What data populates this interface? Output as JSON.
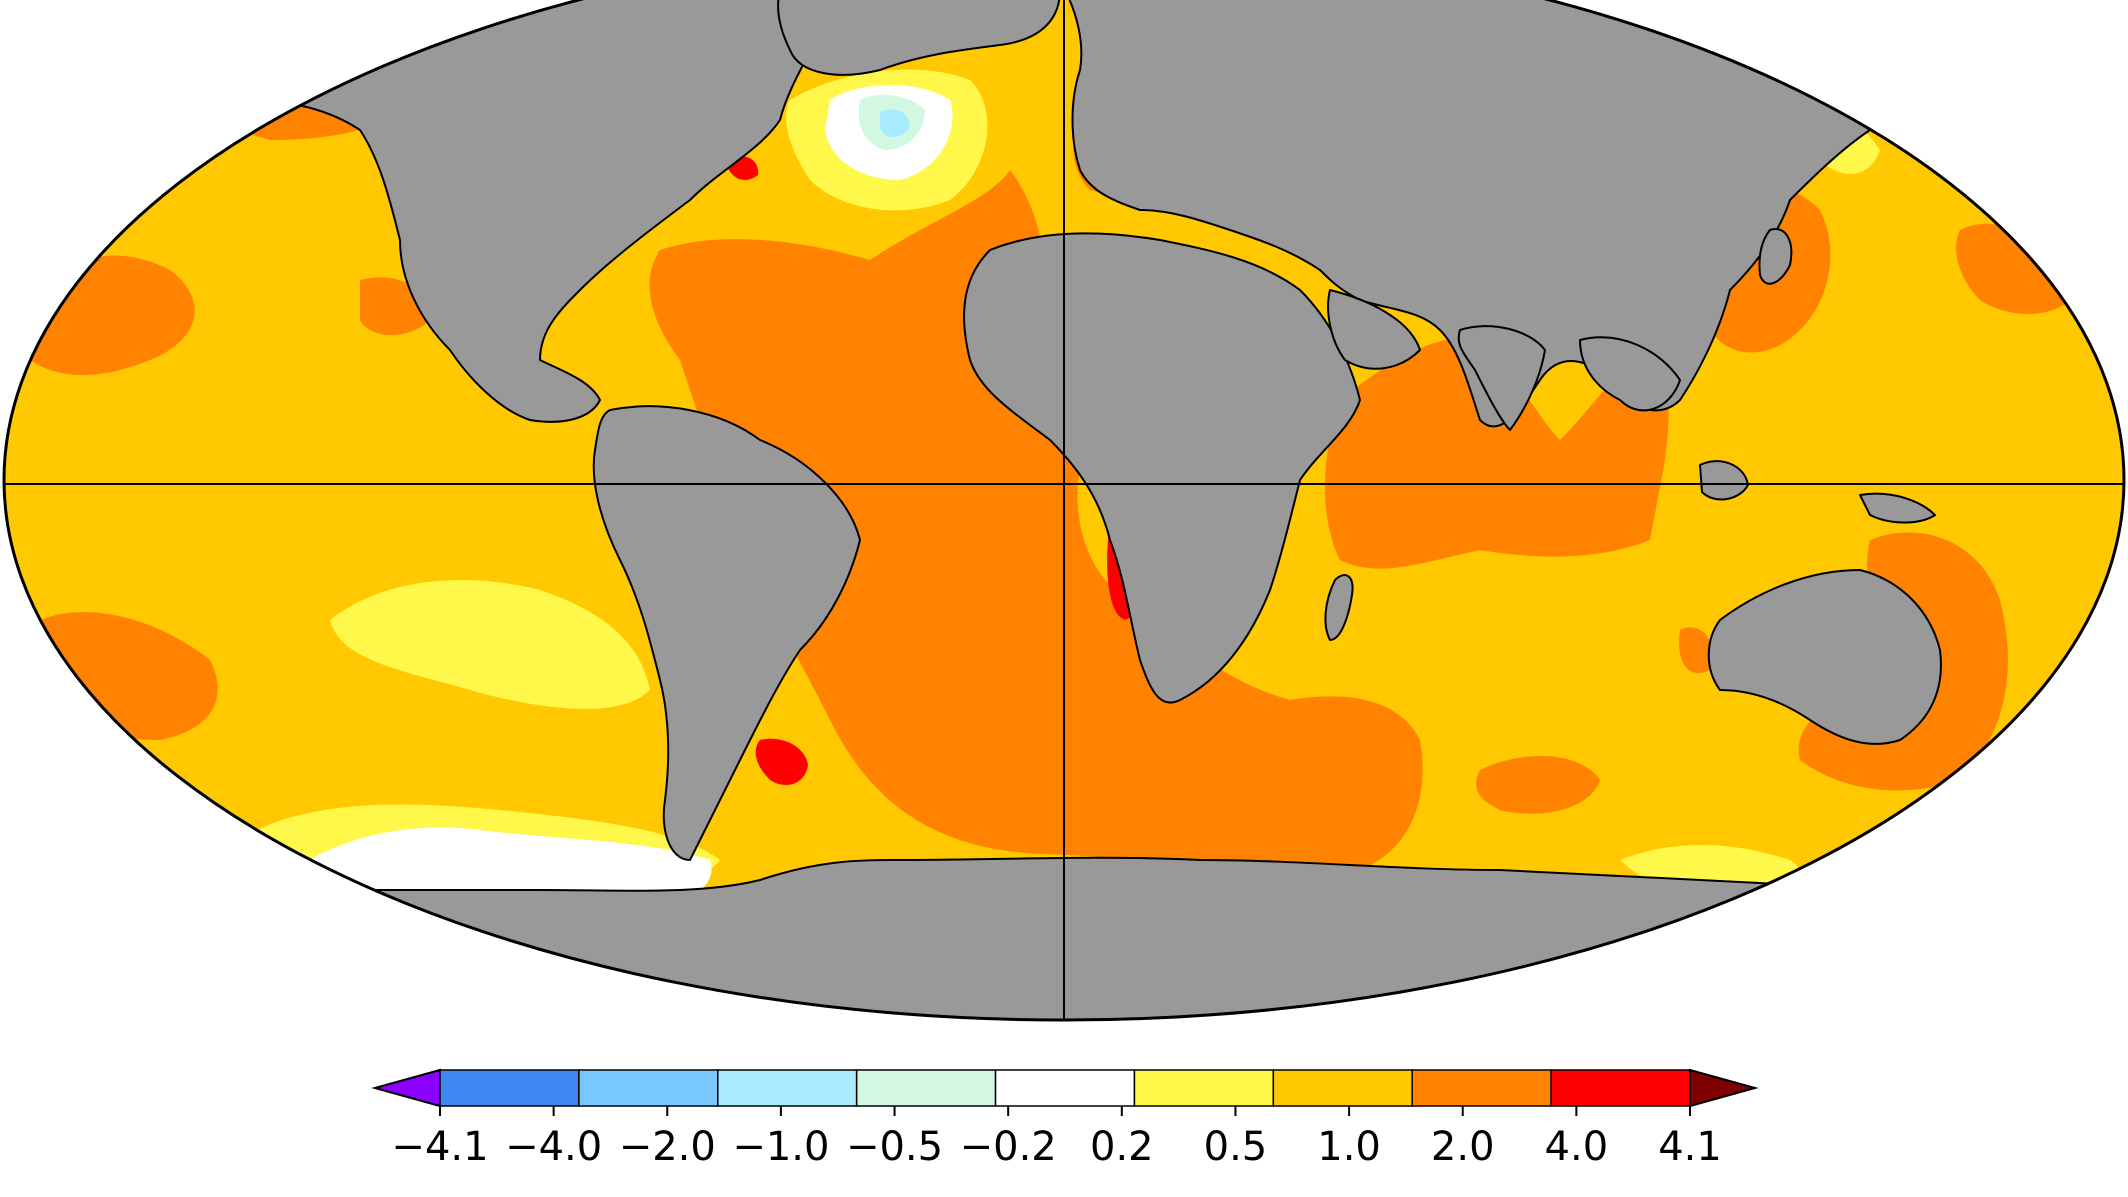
{
  "colorbar": {
    "ticks": [
      "−4.1",
      "−4.0",
      "−2.0",
      "−1.0",
      "−0.5",
      "−0.2",
      "0.2",
      "0.5",
      "1.0",
      "2.0",
      "4.0",
      "4.1"
    ],
    "colors": [
      "#8B00FF",
      "#3F87F0",
      "#78C8FF",
      "#A8EBFF",
      "#D2F8E2",
      "#FFFFFF",
      "#FFF84A",
      "#FFC800",
      "#FF8200",
      "#FF0000",
      "#7F0000"
    ],
    "extend": "both"
  },
  "palette": {
    "land": "#999999",
    "coast": "#000000",
    "ocean_base": "#FFC800"
  }
}
